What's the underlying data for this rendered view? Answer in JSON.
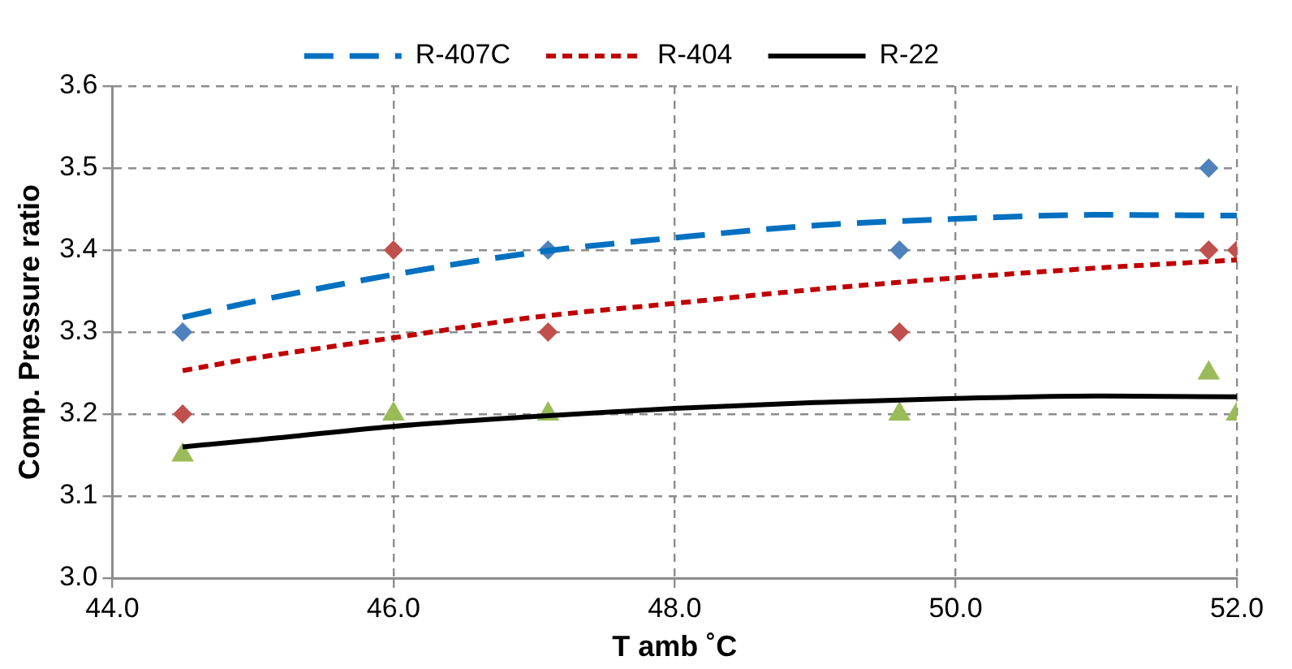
{
  "chart_data": {
    "type": "scatter",
    "xlabel": "T amb ˚C",
    "ylabel": "Comp. Pressure ratio",
    "xlim": [
      44.0,
      52.0
    ],
    "xticks": [
      {
        "value": 44,
        "label": "44.0"
      },
      {
        "value": 46,
        "label": "46.0"
      },
      {
        "value": 48,
        "label": "48.0"
      },
      {
        "value": 50,
        "label": "50.0"
      },
      {
        "value": 52,
        "label": "52.0"
      }
    ],
    "ylim": [
      3.0,
      3.6
    ],
    "yticks": [
      {
        "value": 3.0,
        "label": "3.0"
      },
      {
        "value": 3.1,
        "label": "3.1"
      },
      {
        "value": 3.2,
        "label": "3.2"
      },
      {
        "value": 3.3,
        "label": "3.3"
      },
      {
        "value": 3.4,
        "label": "3.4"
      },
      {
        "value": 3.5,
        "label": "3.5"
      },
      {
        "value": 3.6,
        "label": "3.6"
      }
    ],
    "grid": true,
    "legend": "top",
    "series": [
      {
        "type": "scatter",
        "color": "#4f81bd",
        "marker": "diamond",
        "x": [
          44.5,
          47.1,
          49.6,
          51.8
        ],
        "values": [
          3.3,
          3.4,
          3.4,
          3.5
        ]
      },
      {
        "type": "scatter",
        "color": "#c0504d",
        "marker": "diamond",
        "x": [
          44.5,
          46.0,
          47.1,
          49.6,
          51.8,
          52.0
        ],
        "values": [
          3.2,
          3.4,
          3.3,
          3.3,
          3.4,
          3.4
        ]
      },
      {
        "type": "scatter",
        "color": "#9bbb59",
        "marker": "triangle",
        "x": [
          44.5,
          46.0,
          47.1,
          49.6,
          51.8,
          52.0
        ],
        "values": [
          3.15,
          3.2,
          3.2,
          3.2,
          3.25,
          3.2
        ]
      },
      {
        "type": "line",
        "name": "R-407C",
        "color": "#0070c0",
        "line_style": "dashed",
        "marker": "none",
        "x": [
          44.5,
          45,
          46,
          47,
          48,
          49,
          50,
          51,
          52
        ],
        "values": [
          3.318,
          3.337,
          3.37,
          3.397,
          3.415,
          3.43,
          3.438,
          3.443,
          3.442
        ]
      },
      {
        "type": "line",
        "name": "R-404",
        "color": "#c00000",
        "line_style": "dotted",
        "marker": "none",
        "x": [
          44.5,
          45,
          46,
          47,
          48,
          49,
          50,
          51,
          52
        ],
        "values": [
          3.253,
          3.268,
          3.293,
          3.318,
          3.335,
          3.352,
          3.366,
          3.378,
          3.388
        ]
      },
      {
        "type": "line",
        "name": "R-22",
        "color": "#000000",
        "line_style": "solid",
        "marker": "none",
        "x": [
          44.5,
          45,
          46,
          47,
          48,
          49,
          50,
          51,
          52
        ],
        "values": [
          3.16,
          3.168,
          3.185,
          3.197,
          3.207,
          3.214,
          3.219,
          3.222,
          3.221
        ]
      }
    ]
  }
}
